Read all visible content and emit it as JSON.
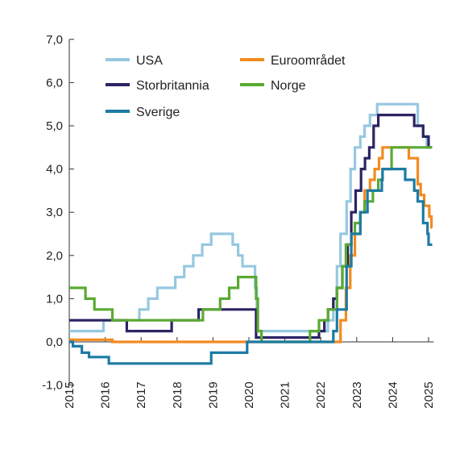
{
  "chart_data": {
    "type": "line",
    "title": "",
    "xlabel": "",
    "ylabel": "",
    "xlim": [
      2015,
      2025.1
    ],
    "ylim": [
      -1,
      7
    ],
    "x_ticks": [
      "2015",
      "2016",
      "2017",
      "2018",
      "2019",
      "2020",
      "2021",
      "2022",
      "2023",
      "2024",
      "2025"
    ],
    "y_ticks": [
      "-1,0",
      "0,0",
      "1,0",
      "2,0",
      "3,0",
      "4,0",
      "5,0",
      "6,0",
      "7,0"
    ],
    "grid": false,
    "legend_position": "top",
    "series": [
      {
        "name": "USA",
        "color": "#96c8e0",
        "points": [
          [
            2015,
            0.25
          ],
          [
            2015.95,
            0.25
          ],
          [
            2015.95,
            0.5
          ],
          [
            2016.95,
            0.5
          ],
          [
            2016.95,
            0.75
          ],
          [
            2017.2,
            0.75
          ],
          [
            2017.2,
            1.0
          ],
          [
            2017.45,
            1.0
          ],
          [
            2017.45,
            1.25
          ],
          [
            2017.95,
            1.25
          ],
          [
            2017.95,
            1.5
          ],
          [
            2018.2,
            1.5
          ],
          [
            2018.2,
            1.75
          ],
          [
            2018.45,
            1.75
          ],
          [
            2018.45,
            2.0
          ],
          [
            2018.7,
            2.0
          ],
          [
            2018.7,
            2.25
          ],
          [
            2018.95,
            2.25
          ],
          [
            2018.95,
            2.5
          ],
          [
            2019.55,
            2.5
          ],
          [
            2019.55,
            2.25
          ],
          [
            2019.7,
            2.25
          ],
          [
            2019.7,
            2.0
          ],
          [
            2019.82,
            2.0
          ],
          [
            2019.82,
            1.75
          ],
          [
            2020.17,
            1.75
          ],
          [
            2020.17,
            1.25
          ],
          [
            2020.22,
            1.25
          ],
          [
            2020.22,
            0.25
          ],
          [
            2022.2,
            0.25
          ],
          [
            2022.2,
            0.5
          ],
          [
            2022.35,
            0.5
          ],
          [
            2022.35,
            1.0
          ],
          [
            2022.45,
            1.0
          ],
          [
            2022.45,
            1.75
          ],
          [
            2022.55,
            1.75
          ],
          [
            2022.55,
            2.5
          ],
          [
            2022.72,
            2.5
          ],
          [
            2022.72,
            3.25
          ],
          [
            2022.83,
            3.25
          ],
          [
            2022.83,
            4.0
          ],
          [
            2022.95,
            4.0
          ],
          [
            2022.95,
            4.5
          ],
          [
            2023.1,
            4.5
          ],
          [
            2023.1,
            4.75
          ],
          [
            2023.22,
            4.75
          ],
          [
            2023.22,
            5.0
          ],
          [
            2023.37,
            5.0
          ],
          [
            2023.37,
            5.25
          ],
          [
            2023.57,
            5.25
          ],
          [
            2023.57,
            5.5
          ],
          [
            2024.7,
            5.5
          ],
          [
            2024.7,
            5.0
          ],
          [
            2024.85,
            5.0
          ],
          [
            2024.85,
            4.75
          ],
          [
            2024.95,
            4.75
          ],
          [
            2024.95,
            4.5
          ],
          [
            2025.1,
            4.5
          ]
        ]
      },
      {
        "name": "Euroområdet",
        "color": "#f28b1e",
        "points": [
          [
            2015,
            0.05
          ],
          [
            2016.2,
            0.05
          ],
          [
            2016.2,
            0.0
          ],
          [
            2022.55,
            0.0
          ],
          [
            2022.55,
            0.5
          ],
          [
            2022.7,
            0.5
          ],
          [
            2022.7,
            1.25
          ],
          [
            2022.82,
            1.25
          ],
          [
            2022.82,
            2.0
          ],
          [
            2022.95,
            2.0
          ],
          [
            2022.95,
            2.5
          ],
          [
            2023.1,
            2.5
          ],
          [
            2023.1,
            3.0
          ],
          [
            2023.22,
            3.0
          ],
          [
            2023.22,
            3.5
          ],
          [
            2023.37,
            3.5
          ],
          [
            2023.37,
            3.75
          ],
          [
            2023.5,
            3.75
          ],
          [
            2023.5,
            4.0
          ],
          [
            2023.62,
            4.0
          ],
          [
            2023.62,
            4.25
          ],
          [
            2023.72,
            4.25
          ],
          [
            2023.72,
            4.5
          ],
          [
            2024.45,
            4.5
          ],
          [
            2024.45,
            4.25
          ],
          [
            2024.7,
            4.25
          ],
          [
            2024.7,
            3.65
          ],
          [
            2024.78,
            3.65
          ],
          [
            2024.78,
            3.4
          ],
          [
            2024.88,
            3.4
          ],
          [
            2024.88,
            3.15
          ],
          [
            2025.02,
            3.15
          ],
          [
            2025.02,
            2.9
          ],
          [
            2025.08,
            2.9
          ],
          [
            2025.08,
            2.65
          ],
          [
            2025.1,
            2.65
          ]
        ]
      },
      {
        "name": "Storbritannia",
        "color": "#2b2464",
        "points": [
          [
            2015,
            0.5
          ],
          [
            2016.6,
            0.5
          ],
          [
            2016.6,
            0.25
          ],
          [
            2017.85,
            0.25
          ],
          [
            2017.85,
            0.5
          ],
          [
            2018.6,
            0.5
          ],
          [
            2018.6,
            0.75
          ],
          [
            2020.2,
            0.75
          ],
          [
            2020.2,
            0.1
          ],
          [
            2021.95,
            0.1
          ],
          [
            2021.95,
            0.25
          ],
          [
            2022.1,
            0.25
          ],
          [
            2022.1,
            0.5
          ],
          [
            2022.2,
            0.5
          ],
          [
            2022.2,
            0.75
          ],
          [
            2022.35,
            0.75
          ],
          [
            2022.35,
            1.0
          ],
          [
            2022.45,
            1.0
          ],
          [
            2022.45,
            1.25
          ],
          [
            2022.6,
            1.25
          ],
          [
            2022.6,
            1.75
          ],
          [
            2022.75,
            1.75
          ],
          [
            2022.75,
            2.25
          ],
          [
            2022.85,
            2.25
          ],
          [
            2022.85,
            3.0
          ],
          [
            2022.97,
            3.0
          ],
          [
            2022.97,
            3.5
          ],
          [
            2023.12,
            3.5
          ],
          [
            2023.12,
            4.0
          ],
          [
            2023.23,
            4.0
          ],
          [
            2023.23,
            4.25
          ],
          [
            2023.35,
            4.25
          ],
          [
            2023.35,
            4.5
          ],
          [
            2023.47,
            4.5
          ],
          [
            2023.47,
            5.0
          ],
          [
            2023.6,
            5.0
          ],
          [
            2023.6,
            5.25
          ],
          [
            2024.6,
            5.25
          ],
          [
            2024.6,
            5.0
          ],
          [
            2024.85,
            5.0
          ],
          [
            2024.85,
            4.75
          ],
          [
            2025.0,
            4.75
          ],
          [
            2025.0,
            4.5
          ],
          [
            2025.1,
            4.5
          ]
        ]
      },
      {
        "name": "Norge",
        "color": "#5aaa32",
        "points": [
          [
            2015,
            1.25
          ],
          [
            2015.45,
            1.25
          ],
          [
            2015.45,
            1.0
          ],
          [
            2015.7,
            1.0
          ],
          [
            2015.7,
            0.75
          ],
          [
            2016.2,
            0.75
          ],
          [
            2016.2,
            0.5
          ],
          [
            2018.72,
            0.5
          ],
          [
            2018.72,
            0.75
          ],
          [
            2019.2,
            0.75
          ],
          [
            2019.2,
            1.0
          ],
          [
            2019.45,
            1.0
          ],
          [
            2019.45,
            1.25
          ],
          [
            2019.7,
            1.25
          ],
          [
            2019.7,
            1.5
          ],
          [
            2020.2,
            1.5
          ],
          [
            2020.2,
            1.0
          ],
          [
            2020.25,
            1.0
          ],
          [
            2020.25,
            0.25
          ],
          [
            2020.35,
            0.25
          ],
          [
            2020.35,
            0.0
          ],
          [
            2021.7,
            0.0
          ],
          [
            2021.7,
            0.25
          ],
          [
            2021.95,
            0.25
          ],
          [
            2021.95,
            0.5
          ],
          [
            2022.2,
            0.5
          ],
          [
            2022.2,
            0.75
          ],
          [
            2022.45,
            0.75
          ],
          [
            2022.45,
            1.25
          ],
          [
            2022.6,
            1.25
          ],
          [
            2022.6,
            1.75
          ],
          [
            2022.7,
            1.75
          ],
          [
            2022.7,
            2.25
          ],
          [
            2022.85,
            2.25
          ],
          [
            2022.85,
            2.5
          ],
          [
            2022.95,
            2.5
          ],
          [
            2022.95,
            2.75
          ],
          [
            2023.1,
            2.75
          ],
          [
            2023.1,
            3.0
          ],
          [
            2023.22,
            3.0
          ],
          [
            2023.22,
            3.25
          ],
          [
            2023.45,
            3.25
          ],
          [
            2023.45,
            3.5
          ],
          [
            2023.6,
            3.5
          ],
          [
            2023.6,
            3.75
          ],
          [
            2023.72,
            3.75
          ],
          [
            2023.72,
            4.0
          ],
          [
            2023.97,
            4.0
          ],
          [
            2023.97,
            4.5
          ],
          [
            2025.1,
            4.5
          ]
        ]
      },
      {
        "name": "Sverige",
        "color": "#1d7ba3",
        "points": [
          [
            2015,
            0.0
          ],
          [
            2015.1,
            0.0
          ],
          [
            2015.1,
            -0.1
          ],
          [
            2015.35,
            -0.1
          ],
          [
            2015.35,
            -0.25
          ],
          [
            2015.55,
            -0.25
          ],
          [
            2015.55,
            -0.35
          ],
          [
            2016.1,
            -0.35
          ],
          [
            2016.1,
            -0.5
          ],
          [
            2018.95,
            -0.5
          ],
          [
            2018.95,
            -0.25
          ],
          [
            2019.95,
            -0.25
          ],
          [
            2019.95,
            0.0
          ],
          [
            2022.35,
            0.0
          ],
          [
            2022.35,
            0.25
          ],
          [
            2022.45,
            0.25
          ],
          [
            2022.45,
            0.75
          ],
          [
            2022.72,
            0.75
          ],
          [
            2022.72,
            1.75
          ],
          [
            2022.85,
            1.75
          ],
          [
            2022.85,
            2.5
          ],
          [
            2023.1,
            2.5
          ],
          [
            2023.1,
            3.0
          ],
          [
            2023.3,
            3.0
          ],
          [
            2023.3,
            3.5
          ],
          [
            2023.7,
            3.5
          ],
          [
            2023.7,
            3.75
          ],
          [
            2023.72,
            3.75
          ],
          [
            2023.72,
            4.0
          ],
          [
            2024.35,
            4.0
          ],
          [
            2024.35,
            3.75
          ],
          [
            2024.6,
            3.75
          ],
          [
            2024.6,
            3.5
          ],
          [
            2024.7,
            3.5
          ],
          [
            2024.7,
            3.25
          ],
          [
            2024.85,
            3.25
          ],
          [
            2024.85,
            2.75
          ],
          [
            2024.97,
            2.75
          ],
          [
            2024.97,
            2.5
          ],
          [
            2025.0,
            2.5
          ],
          [
            2025.0,
            2.25
          ],
          [
            2025.1,
            2.25
          ]
        ]
      }
    ]
  }
}
